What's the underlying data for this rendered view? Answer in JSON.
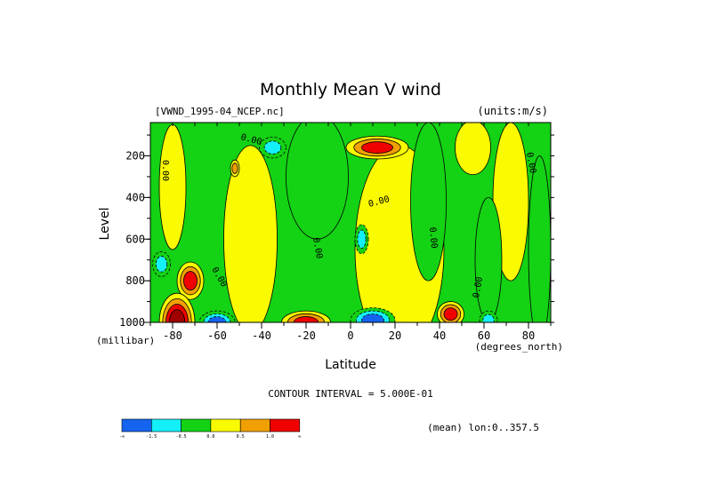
{
  "chart_data": {
    "type": "heatmap",
    "title": "Monthly Mean V wind",
    "dataset_label": "[VWND_1995-04_NCEP.nc]",
    "units_label": "(units:m/s)",
    "xlabel": "Latitude",
    "x_unit": "(degrees_north)",
    "ylabel": "Level",
    "y_unit": "(millibar)",
    "xlim": [
      -90,
      90
    ],
    "ylim": [
      1000,
      40
    ],
    "x_ticks": [
      -80,
      -60,
      -40,
      -20,
      0,
      20,
      40,
      60,
      80
    ],
    "y_ticks": [
      200,
      400,
      600,
      800,
      1000
    ],
    "contour_interval_text": "CONTOUR INTERVAL = 5.000E-01",
    "contour_line_label": "0.00",
    "mean_text": "(mean) lon:0..357.5",
    "colors": [
      "#1464f0",
      "#14f0fa",
      "#14d214",
      "#fafa00",
      "#f0a000",
      "#f00000",
      "#a00000"
    ],
    "colorbar": {
      "colors": [
        "#1464f0",
        "#14f0fa",
        "#14d214",
        "#fafa00",
        "#f0a000",
        "#f00000"
      ],
      "labels": [
        "-∞",
        "-1.5",
        "-0.5",
        "0.0",
        "0.5",
        "1.0",
        "∞"
      ]
    },
    "features": [
      {
        "lat": 12,
        "level": 160,
        "value": 2.2,
        "w": 14,
        "h": 55
      },
      {
        "lat": -72,
        "level": 800,
        "value": 1.4,
        "w": 6,
        "h": 90
      },
      {
        "lat": -78,
        "level": 1000,
        "value": 3.0,
        "w": 8,
        "h": 140
      },
      {
        "lat": -60,
        "level": 1000,
        "value": -2.2,
        "w": 8,
        "h": 55
      },
      {
        "lat": -20,
        "level": 1000,
        "value": 2.2,
        "w": 11,
        "h": 55
      },
      {
        "lat": 10,
        "level": 990,
        "value": -2.0,
        "w": 10,
        "h": 60
      },
      {
        "lat": 45,
        "level": 960,
        "value": 1.2,
        "w": 6,
        "h": 60
      },
      {
        "lat": 62,
        "level": 990,
        "value": -1.0,
        "w": 4,
        "h": 45
      },
      {
        "lat": -35,
        "level": 160,
        "value": -1.0,
        "w": 6,
        "h": 50
      },
      {
        "lat": 5,
        "level": 600,
        "value": -0.8,
        "w": 3,
        "h": 70
      },
      {
        "lat": -85,
        "level": 720,
        "value": -0.9,
        "w": 4,
        "h": 60
      },
      {
        "lat": -52,
        "level": 260,
        "value": 0.8,
        "w": 2,
        "h": 40
      }
    ],
    "positive_regions": [
      {
        "lat": -45,
        "level": 600,
        "value": 0.45,
        "w": 12,
        "h": 450
      },
      {
        "lat": 22,
        "level": 650,
        "value": 0.45,
        "w": 20,
        "h": 500
      },
      {
        "lat": 72,
        "level": 420,
        "value": 0.45,
        "w": 8,
        "h": 380
      },
      {
        "lat": -80,
        "level": 350,
        "value": 0.3,
        "w": 6,
        "h": 300
      },
      {
        "lat": 55,
        "level": 160,
        "value": 0.4,
        "w": 8,
        "h": 130
      }
    ],
    "negative_regions": [
      {
        "lat": -15,
        "level": 300,
        "value": -0.45,
        "w": 14,
        "h": 300
      },
      {
        "lat": 35,
        "level": 420,
        "value": -0.45,
        "w": 8,
        "h": 380
      },
      {
        "lat": 62,
        "level": 700,
        "value": -0.35,
        "w": 6,
        "h": 300
      },
      {
        "lat": 85,
        "level": 650,
        "value": -0.35,
        "w": 5,
        "h": 450
      }
    ]
  }
}
